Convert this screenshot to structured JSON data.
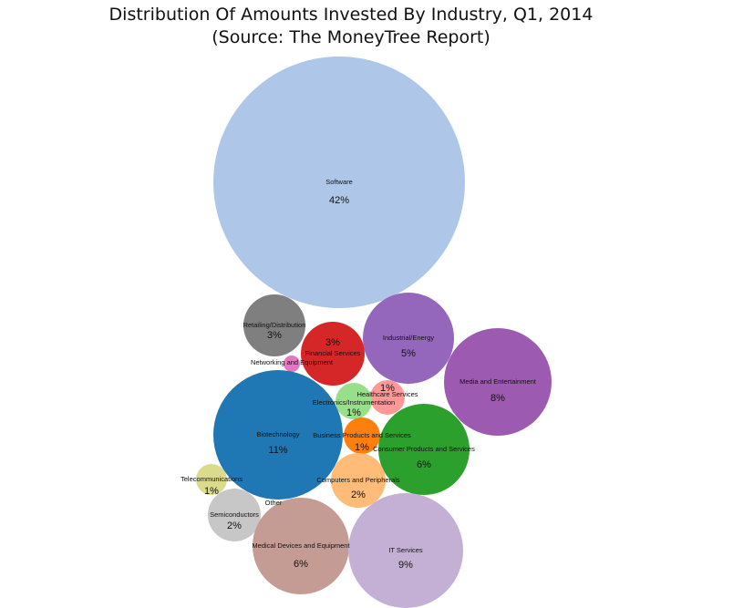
{
  "chart_data": {
    "type": "bubble",
    "title": "Distribution Of Amounts Invested By Industry, Q1, 2014",
    "subtitle": "(Source: The MoneyTree Report)",
    "bubbles": [
      {
        "name": "Software",
        "value": 42,
        "label": "42%",
        "color": "#aec7e8"
      },
      {
        "name": "Retailing/Distribution",
        "value": 3,
        "label": "3%",
        "color": "#7f7f7f"
      },
      {
        "name": "Financial Services",
        "value": 3,
        "label": "3%",
        "color": "#d62728"
      },
      {
        "name": "Industrial/Energy",
        "value": 5,
        "label": "5%",
        "color": "#9467bd"
      },
      {
        "name": "Media and Entertainment",
        "value": 8,
        "label": "8%",
        "color": "#9c5bb0"
      },
      {
        "name": "Networking and Equipment",
        "value": 0.3,
        "label": "",
        "color": "#e377c2"
      },
      {
        "name": "Healthcare Services",
        "value": 1,
        "label": "1%",
        "color": "#ff9896"
      },
      {
        "name": "Electronics/Instrumentation",
        "value": 1,
        "label": "1%",
        "color": "#98df8a"
      },
      {
        "name": "Biotechnology",
        "value": 11,
        "label": "11%",
        "color": "#1f77b4"
      },
      {
        "name": "Business Products and Services",
        "value": 1,
        "label": "1%",
        "color": "#ff7f0e"
      },
      {
        "name": "Consumer Products and Services",
        "value": 6,
        "label": "6%",
        "color": "#2ca02c"
      },
      {
        "name": "Telecommunications",
        "value": 1,
        "label": "1%",
        "color": "#dbdb8d"
      },
      {
        "name": "Computers and Peripherals",
        "value": 2,
        "label": "2%",
        "color": "#ffbb78"
      },
      {
        "name": "Other",
        "value": 0,
        "label": "",
        "color": "#c7c7c7"
      },
      {
        "name": "Semiconductors",
        "value": 2,
        "label": "2%",
        "color": "#c7c7c7"
      },
      {
        "name": "Medical Devices and Equipment",
        "value": 6,
        "label": "6%",
        "color": "#c49c94"
      },
      {
        "name": "IT Services",
        "value": 9,
        "label": "9%",
        "color": "#c5b0d5"
      }
    ]
  }
}
